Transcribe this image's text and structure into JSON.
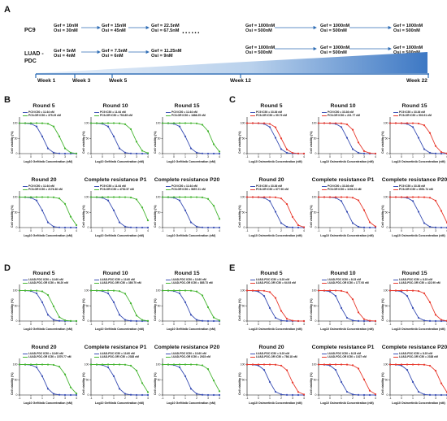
{
  "panel_a": {
    "label": "A",
    "rows": [
      {
        "cell": "PC9",
        "steps": [
          {
            "gef": "Gef = 10nM",
            "osi": "Osi = 30nM"
          },
          {
            "gef": "Gef = 15nM",
            "osi": "Osi = 45nM"
          },
          {
            "gef": "Gef = 22.5nM",
            "osi": "Osi = 67.5nM"
          },
          {
            "gef": "Gef = 1000nM",
            "osi": "Osi = 500nM"
          },
          {
            "gef": "Gef = 1000nM",
            "osi": "Osi = 500nM"
          },
          {
            "gef": "Gef = 1000nM",
            "osi": "Osi = 500nM"
          }
        ]
      },
      {
        "cell": "LUAD -PDC",
        "steps": [
          {
            "gef": "Gef = 5nM",
            "osi": "Osi = 4nM"
          },
          {
            "gef": "Gef = 7.5nM",
            "osi": "Osi = 6nM"
          },
          {
            "gef": "Gef = 11.25nM",
            "osi": "Osi = 9nM"
          },
          {
            "gef": "Gef = 1000nM",
            "osi": "Osi = 500nM"
          },
          {
            "gef": "Gef = 1000nM",
            "osi": "Osi = 500nM"
          },
          {
            "gef": "Gef = 1000nM",
            "osi": "Osi = 500nM"
          }
        ]
      }
    ],
    "ellipsis": "......",
    "weeks": [
      "Week 1",
      "Week 3",
      "Week 5",
      "Week 12",
      "Week 22"
    ]
  },
  "panels": [
    {
      "label": "B",
      "xlabel": "Log10 Gefitinib Concentration (nM)",
      "ylabel": "Cell viability (%)",
      "color_sens": "#3a4fb4",
      "color_res": "#46b532",
      "charts": [
        {
          "title": "Round 5",
          "legend": [
            "PC9 IC50 = 11.64 nM",
            "PC9-GR IC50 = 375.29 nM"
          ],
          "ic50_log": [
            1.07,
            2.57
          ]
        },
        {
          "title": "Round 10",
          "legend": [
            "PC9 IC50 = 11.64 nM",
            "PC9-GR IC50 = 753.85 nM"
          ],
          "ic50_log": [
            1.07,
            2.88
          ]
        },
        {
          "title": "Round 15",
          "legend": [
            "PC9 IC50 = 11.64 nM",
            "PC9-GR IC50 = 1886.25 nM"
          ],
          "ic50_log": [
            1.07,
            3.28
          ]
        },
        {
          "title": "Round 20",
          "legend": [
            "PC9 IC50 = 11.64 nM",
            "PC9-GR IC50 = 2176.36 nM"
          ],
          "ic50_log": [
            1.07,
            3.34
          ]
        },
        {
          "title": "Complete resistance P1",
          "legend": [
            "PC9 IC50 = 11.64 nM",
            "PC9-GR IC50 = 4752.57 nM"
          ],
          "ic50_log": [
            1.07,
            3.68
          ]
        },
        {
          "title": "Complete resistance P20",
          "legend": [
            "PC9 IC50 = 11.64 nM",
            "PC9-GR IC50 = 5657.21 nM"
          ],
          "ic50_log": [
            1.07,
            3.75
          ]
        }
      ]
    },
    {
      "label": "C",
      "xlabel": "Log10 Osimertinib Concentration (nM)",
      "ylabel": "Cell viability (%)",
      "color_sens": "#3a4fb4",
      "color_res": "#e83a2e",
      "charts": [
        {
          "title": "Round 5",
          "legend": [
            "PC9 IC50 = 33.36 nM",
            "PC9-OR IC50 = 99.79 nM"
          ],
          "ic50_log": [
            1.52,
            2.0
          ]
        },
        {
          "title": "Round 10",
          "legend": [
            "PC9 IC50 = 33.36 nM",
            "PC9-OR IC50 = 221.77 nM"
          ],
          "ic50_log": [
            1.52,
            2.35
          ]
        },
        {
          "title": "Round 15",
          "legend": [
            "PC9 IC50 = 33.36 nM",
            "PC9-OR IC50 = 503.91 nM"
          ],
          "ic50_log": [
            1.52,
            2.7
          ]
        },
        {
          "title": "Round 20",
          "legend": [
            "PC9 IC50 = 33.36 nM",
            "PC9-OR IC50 = 677.90 nM"
          ],
          "ic50_log": [
            1.52,
            2.83
          ]
        },
        {
          "title": "Complete resistance P1",
          "legend": [
            "PC9 IC50 = 33.36 nM",
            "PC9-OR IC50 = 1193.24 nM"
          ],
          "ic50_log": [
            1.52,
            3.08
          ]
        },
        {
          "title": "Complete resistance P20",
          "legend": [
            "PC9 IC50 = 33.36 nM",
            "PC9-OR IC50 = 3551.74 nM"
          ],
          "ic50_log": [
            1.52,
            3.55
          ]
        }
      ]
    },
    {
      "label": "D",
      "xlabel": "Log10 Gefitinib Concentration (nM)",
      "ylabel": "Cell viability (%)",
      "color_sens": "#3a4fb4",
      "color_res": "#46b532",
      "charts": [
        {
          "title": "Round 5",
          "legend": [
            "LUAD-PDC IC50 = 13.60 nM",
            "LUAD-PDC-GR IC50 = 96.20 nM"
          ],
          "ic50_log": [
            1.13,
            1.98
          ]
        },
        {
          "title": "Round 10",
          "legend": [
            "LUAD-PDC IC50 = 13.60 nM",
            "LUAD-PDC-GR IC50 = 389.70 nM"
          ],
          "ic50_log": [
            1.13,
            2.59
          ]
        },
        {
          "title": "Round 15",
          "legend": [
            "LUAD-PDC IC50 = 13.60 nM",
            "LUAD-PDC-GR IC50 = 885.73 nM"
          ],
          "ic50_log": [
            1.13,
            2.95
          ]
        },
        {
          "title": "Round 20",
          "legend": [
            "LUAD-PDC IC50 = 13.60 nM",
            "LUAD-PDC-GR IC50 = 1579.77 nM"
          ],
          "ic50_log": [
            1.13,
            3.2
          ]
        },
        {
          "title": "Complete resistance P1",
          "legend": [
            "LUAD-PDC IC50 = 13.60 nM",
            "LUAD-PDC-GR IC50 = 2383 nM"
          ],
          "ic50_log": [
            1.13,
            3.38
          ]
        },
        {
          "title": "Complete resistance P20",
          "legend": [
            "LUAD-PDC IC50 = 13.60 nM",
            "LUAD-PDC-GR IC50 = 2923 nM"
          ],
          "ic50_log": [
            1.13,
            3.47
          ]
        }
      ]
    },
    {
      "label": "E",
      "xlabel": "Log10 Osimertinib Concentration (nM)",
      "ylabel": "Cell viability (%)",
      "color_sens": "#3a4fb4",
      "color_res": "#e83a2e",
      "charts": [
        {
          "title": "Round 5",
          "legend": [
            "LUAD-PDC IC50 = 8.23 nM",
            "LUAD-PDC-OR IC50 = 64.93 nM"
          ],
          "ic50_log": [
            0.92,
            1.81
          ]
        },
        {
          "title": "Round 10",
          "legend": [
            "LUAD-PDC IC50 = 8.23 nM",
            "LUAD-PDC-OR IC50 = 177.93 nM"
          ],
          "ic50_log": [
            0.92,
            2.25
          ]
        },
        {
          "title": "Round 15",
          "legend": [
            "LUAD-PDC IC50 = 8.23 nM",
            "LUAD-PDC-OR IC50 = 422.90 nM"
          ],
          "ic50_log": [
            0.92,
            2.63
          ]
        },
        {
          "title": "Round 20",
          "legend": [
            "LUAD-PDC IC50 = 8.23 nM",
            "LUAD-PDC-OR IC50 = 786.18 nM"
          ],
          "ic50_log": [
            0.92,
            2.9
          ]
        },
        {
          "title": "Complete resistance P1",
          "legend": [
            "LUAD-PDC IC50 = 8.23 nM",
            "LUAD-PDC-OR IC50 = 1027 nM"
          ],
          "ic50_log": [
            0.92,
            3.01
          ]
        },
        {
          "title": "Complete resistance P20",
          "legend": [
            "LUAD-PDC IC50 = 8.23 nM",
            "LUAD-PDC-OR IC50 = 2338 nM"
          ],
          "ic50_log": [
            0.92,
            3.37
          ]
        }
      ]
    }
  ]
}
